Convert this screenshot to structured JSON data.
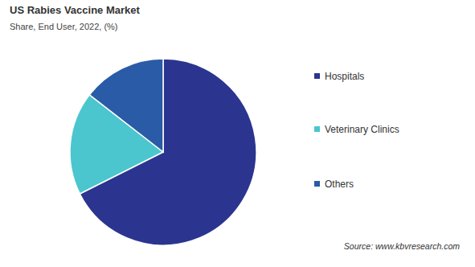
{
  "chart_data": {
    "type": "pie",
    "title": "US Rabies Vaccine Market",
    "subtitle": "Share, End User, 2022, (%)",
    "categories": [
      "Hospitals",
      "Veterinary Clinics",
      "Others"
    ],
    "values": [
      67.6,
      17.9,
      14.5
    ],
    "colors": [
      "#2b3590",
      "#4bc6cf",
      "#2a5ba6"
    ],
    "legend": "right",
    "data_labels": false,
    "source": "Source: www.kbvresearch.com"
  }
}
